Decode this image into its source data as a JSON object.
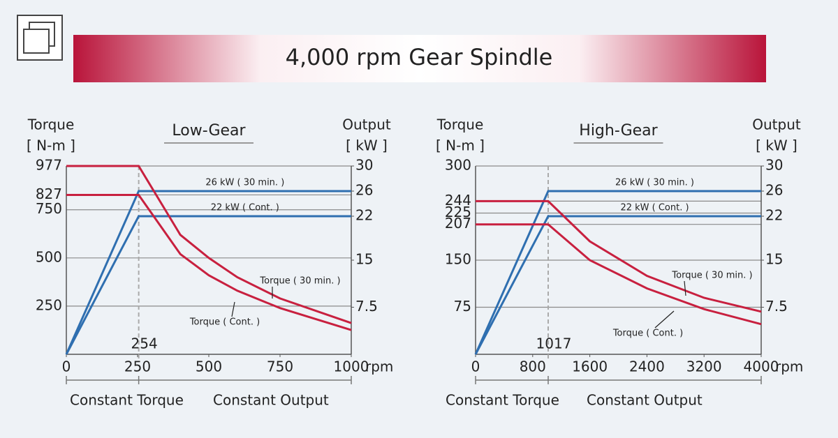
{
  "title": "4,000 rpm Gear Spindle",
  "chart_data": [
    {
      "type": "line",
      "title": "Low-Gear",
      "ylabel": "Torque",
      "yunit": "[ N-m ]",
      "y2label": "Output",
      "y2unit": "[ kW ]",
      "xunit": "rpm",
      "xlim": [
        0,
        1000
      ],
      "xticks": [
        0,
        250,
        500,
        750,
        1000
      ],
      "ylim": [
        0,
        977
      ],
      "yticks": [
        250,
        500,
        750,
        827,
        977
      ],
      "y2lim": [
        0,
        30
      ],
      "y2ticks": [
        7.5,
        15,
        22,
        26,
        30
      ],
      "grid": true,
      "base_speed": 254,
      "regions": [
        "Constant Torque",
        "Constant Output"
      ],
      "series": [
        {
          "name": "26 kW ( 30 min. )",
          "color": "#2f6fb0",
          "axis": "y2",
          "x": [
            0,
            254,
            1000
          ],
          "values": [
            0,
            26,
            26
          ]
        },
        {
          "name": "22 kW ( Cont. )",
          "color": "#2f6fb0",
          "axis": "y2",
          "x": [
            0,
            254,
            1000
          ],
          "values": [
            0,
            22,
            22
          ]
        },
        {
          "name": "Torque ( 30 min. )",
          "color": "#c8203f",
          "x": [
            0,
            254,
            400,
            500,
            600,
            750,
            1000
          ],
          "values": [
            977,
            977,
            620,
            500,
            400,
            290,
            162
          ]
        },
        {
          "name": "Torque ( Cont. )",
          "color": "#c8203f",
          "x": [
            0,
            254,
            400,
            500,
            600,
            750,
            1000
          ],
          "values": [
            827,
            827,
            520,
            410,
            330,
            240,
            126
          ]
        }
      ]
    },
    {
      "type": "line",
      "title": "High-Gear",
      "ylabel": "Torque",
      "yunit": "[ N-m ]",
      "y2label": "Output",
      "y2unit": "[ kW ]",
      "xunit": "rpm",
      "xlim": [
        0,
        4000
      ],
      "xticks": [
        0,
        800,
        1600,
        2400,
        3200,
        4000
      ],
      "ylim": [
        0,
        300
      ],
      "yticks": [
        75,
        150,
        207,
        225,
        244,
        300
      ],
      "y2lim": [
        0,
        30
      ],
      "y2ticks": [
        7.5,
        15,
        22,
        26,
        30
      ],
      "grid": true,
      "base_speed": 1017,
      "regions": [
        "Constant Torque",
        "Constant Output"
      ],
      "series": [
        {
          "name": "26 kW ( 30 min. )",
          "color": "#2f6fb0",
          "axis": "y2",
          "x": [
            0,
            1017,
            4000
          ],
          "values": [
            0,
            26,
            26
          ]
        },
        {
          "name": "22 kW ( Cont. )",
          "color": "#2f6fb0",
          "axis": "y2",
          "x": [
            0,
            1017,
            4000
          ],
          "values": [
            0,
            22,
            22
          ]
        },
        {
          "name": "Torque ( 30 min. )",
          "color": "#c8203f",
          "x": [
            0,
            1017,
            1600,
            2400,
            3200,
            4000
          ],
          "values": [
            244,
            244,
            180,
            125,
            90,
            68
          ]
        },
        {
          "name": "Torque ( Cont. )",
          "color": "#c8203f",
          "x": [
            0,
            1017,
            1600,
            2400,
            3200,
            4000
          ],
          "values": [
            207,
            207,
            150,
            105,
            72,
            48
          ]
        }
      ]
    }
  ]
}
